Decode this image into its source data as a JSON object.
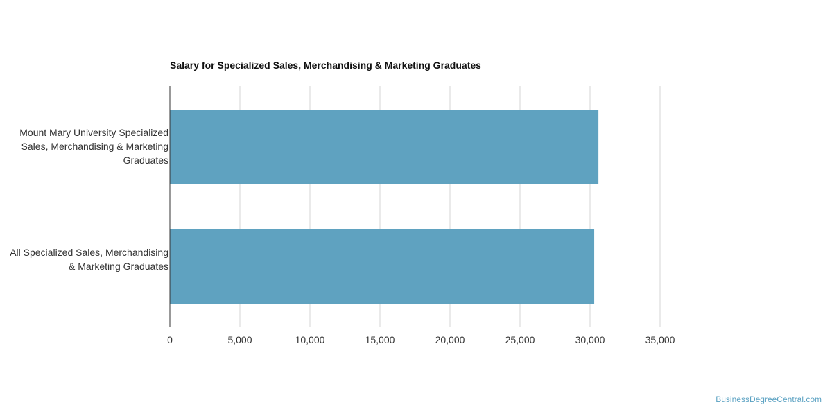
{
  "chart_data": {
    "type": "bar",
    "orientation": "horizontal",
    "title": "Salary for Specialized Sales, Merchandising & Marketing Graduates",
    "categories": [
      "Mount Mary University Specialized Sales, Merchandising & Marketing Graduates",
      "All Specialized Sales, Merchandising & Marketing Graduates"
    ],
    "values": [
      30600,
      30300
    ],
    "xlim": [
      0,
      35000
    ],
    "xticks": [
      "0",
      "5,000",
      "10,000",
      "15,000",
      "20,000",
      "25,000",
      "30,000",
      "35,000"
    ],
    "grid": true,
    "bar_color": "#5fa2c0"
  },
  "footer": {
    "credit": "BusinessDegreeCentral.com"
  }
}
